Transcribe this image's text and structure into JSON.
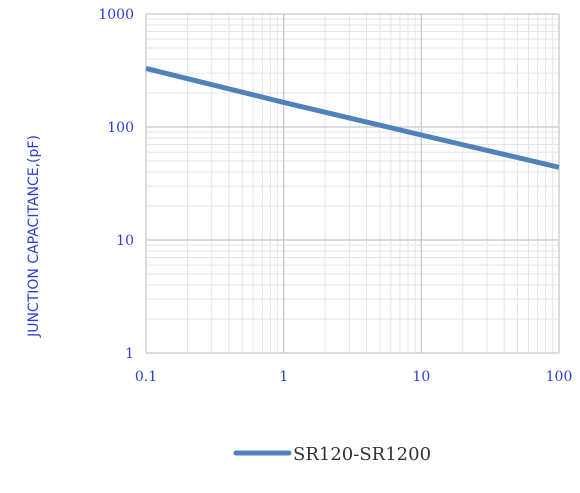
{
  "chart_data": {
    "type": "line",
    "xscale": "log",
    "yscale": "log",
    "xlim": [
      0.1,
      100
    ],
    "ylim": [
      1,
      1000
    ],
    "xticks": [
      "0.1",
      "1",
      "10",
      "100"
    ],
    "yticks": [
      "1",
      "10",
      "100",
      "1000"
    ],
    "xlabel": "",
    "ylabel": "JUNCTION CAPACITANCE,(pF)",
    "grid": true,
    "legend_position": "bottom",
    "series": [
      {
        "name": "SR120-SR1200",
        "color": "#4f81bd",
        "x": [
          0.1,
          1,
          10,
          100
        ],
        "y": [
          330,
          165,
          85,
          44
        ]
      }
    ]
  },
  "colors": {
    "tick_text": "#2e3dd4",
    "grid_major": "#c8c8c8",
    "grid_minor": "#e4e4e4",
    "line": "#4f81bd"
  }
}
